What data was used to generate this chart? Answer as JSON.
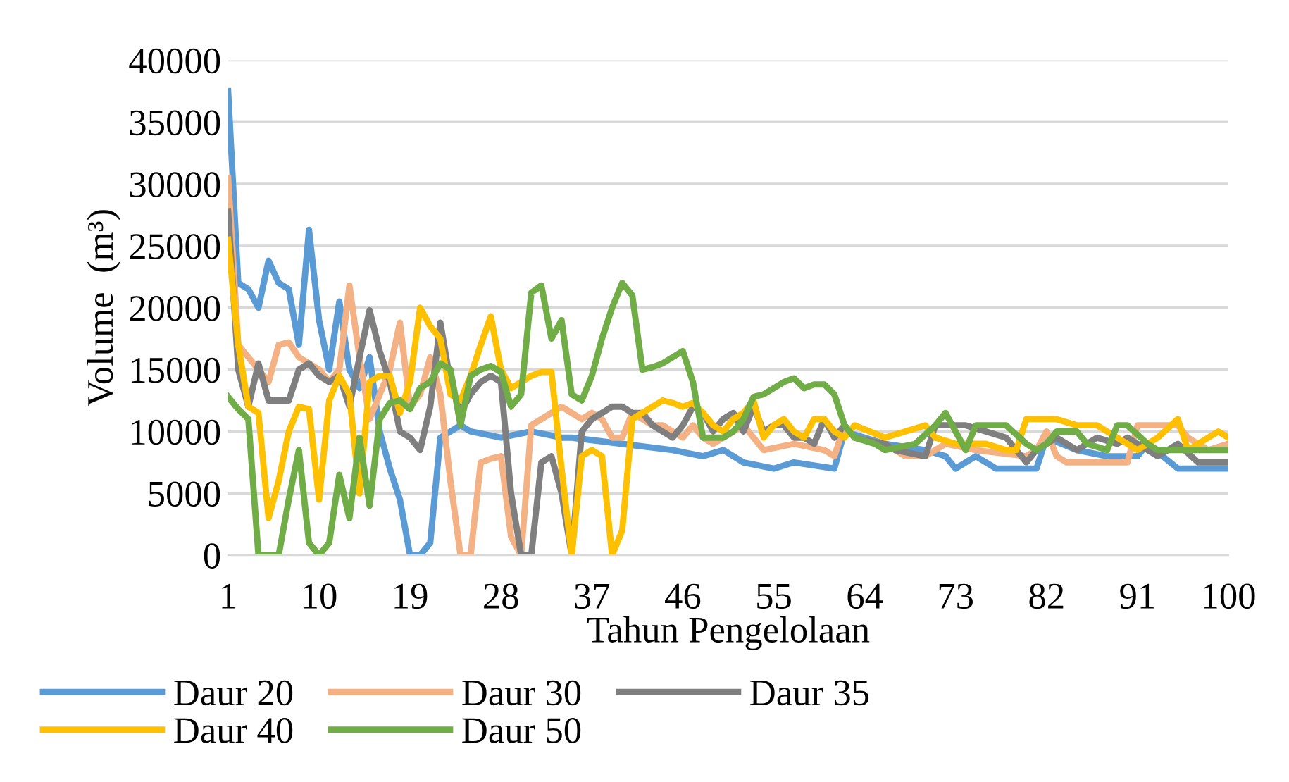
{
  "chart_data": {
    "type": "line",
    "xlabel": "Tahun Pengelolaan",
    "ylabel": "Volume  (m³)",
    "xlim": [
      1,
      100
    ],
    "xticks": [
      1,
      10,
      19,
      28,
      37,
      46,
      55,
      64,
      73,
      82,
      91,
      100
    ],
    "ylim": [
      0,
      40000
    ],
    "yticks": [
      0,
      5000,
      10000,
      15000,
      20000,
      25000,
      30000,
      35000,
      40000
    ],
    "grid": "y",
    "legend": "bottom",
    "marker": "none",
    "line_style": "solid",
    "series": [
      {
        "name": "Daur 20",
        "color": "#5b9bd5",
        "x": [
          1,
          2,
          3,
          4,
          5,
          6,
          7,
          8,
          9,
          10,
          11,
          12,
          13,
          14,
          15,
          16,
          17,
          18,
          19,
          20,
          21,
          22,
          23,
          24,
          25,
          28,
          31,
          34,
          35,
          40,
          45,
          48,
          50,
          52,
          55,
          57,
          61,
          62,
          66,
          70,
          72,
          73,
          75,
          77,
          81,
          82,
          85,
          88,
          91,
          92,
          95,
          97,
          100
        ],
        "values": [
          37500,
          22000,
          21500,
          20000,
          23800,
          22000,
          21500,
          17000,
          26300,
          19000,
          15000,
          20500,
          15000,
          13500,
          16000,
          10000,
          7000,
          4500,
          0,
          0,
          1000,
          9500,
          10000,
          10500,
          10000,
          9500,
          10000,
          9500,
          9500,
          9000,
          8500,
          8000,
          8500,
          7500,
          7000,
          7500,
          7000,
          10000,
          9000,
          8500,
          8000,
          7000,
          8000,
          7000,
          7000,
          9500,
          8500,
          8000,
          8000,
          9000,
          7000,
          7000,
          7000
        ]
      },
      {
        "name": "Daur 30",
        "color": "#f4b183",
        "x": [
          1,
          2,
          3,
          4,
          5,
          6,
          7,
          8,
          9,
          10,
          11,
          12,
          13,
          14,
          15,
          16,
          17,
          18,
          19,
          20,
          21,
          22,
          23,
          24,
          25,
          26,
          27,
          28,
          29,
          30,
          31,
          32,
          33,
          34,
          35,
          36,
          37,
          38,
          39,
          40,
          41,
          42,
          43,
          44,
          45,
          46,
          47,
          48,
          49,
          50,
          51,
          52,
          53,
          54,
          57,
          60,
          61,
          62,
          63,
          66,
          68,
          70,
          72,
          75,
          80,
          81,
          82,
          83,
          84,
          90,
          91,
          95,
          96,
          98,
          100
        ],
        "values": [
          30500,
          17000,
          16000,
          15000,
          14000,
          17000,
          17200,
          16000,
          15500,
          15000,
          14000,
          15000,
          21800,
          16000,
          11000,
          13000,
          15000,
          18800,
          12000,
          13000,
          16000,
          13000,
          6000,
          0,
          0,
          7500,
          7800,
          8000,
          1500,
          0,
          10500,
          11000,
          11500,
          12000,
          11500,
          11000,
          11500,
          11000,
          9500,
          9500,
          11500,
          11000,
          10500,
          10500,
          10000,
          9500,
          10500,
          9500,
          9000,
          9500,
          10000,
          10500,
          9500,
          8500,
          9000,
          8500,
          8000,
          10500,
          9500,
          9000,
          8000,
          8000,
          9000,
          8500,
          8000,
          8500,
          10000,
          8000,
          7500,
          7500,
          10500,
          10500,
          9500,
          8500,
          9000
        ]
      },
      {
        "name": "Daur 35",
        "color": "#7f7f7f",
        "x": [
          1,
          2,
          3,
          4,
          5,
          6,
          7,
          8,
          9,
          10,
          11,
          12,
          13,
          14,
          15,
          16,
          17,
          18,
          19,
          20,
          21,
          22,
          23,
          24,
          25,
          26,
          27,
          28,
          29,
          30,
          31,
          32,
          33,
          34,
          35,
          36,
          37,
          38,
          39,
          40,
          41,
          42,
          43,
          44,
          45,
          46,
          47,
          48,
          49,
          50,
          51,
          52,
          53,
          54,
          55,
          56,
          57,
          58,
          59,
          60,
          61,
          62,
          63,
          66,
          67,
          70,
          71,
          74,
          76,
          78,
          80,
          81,
          83,
          85,
          87,
          89,
          90,
          92,
          93,
          95,
          97,
          100
        ],
        "values": [
          27800,
          15000,
          12000,
          15500,
          12500,
          12500,
          12500,
          15000,
          15500,
          14500,
          14000,
          14500,
          12000,
          16000,
          19800,
          16500,
          14000,
          10000,
          9500,
          8500,
          12000,
          18800,
          14000,
          11500,
          13000,
          14000,
          14500,
          14000,
          5000,
          0,
          0,
          7500,
          8000,
          5000,
          0,
          10000,
          11000,
          11500,
          12000,
          12000,
          11500,
          11500,
          10500,
          10000,
          9500,
          10500,
          12000,
          11500,
          10000,
          11000,
          11500,
          10000,
          12000,
          10000,
          10500,
          10500,
          9500,
          9500,
          9000,
          11000,
          9500,
          10500,
          9500,
          9000,
          8500,
          8000,
          10500,
          10500,
          10000,
          9500,
          7500,
          8500,
          9500,
          8500,
          9500,
          9000,
          9500,
          8500,
          8000,
          9000,
          7500,
          7500
        ]
      },
      {
        "name": "Daur 40",
        "color": "#ffc000",
        "x": [
          1,
          2,
          3,
          4,
          5,
          6,
          7,
          8,
          9,
          10,
          11,
          12,
          13,
          14,
          15,
          16,
          17,
          18,
          19,
          20,
          21,
          22,
          23,
          24,
          25,
          26,
          27,
          28,
          29,
          30,
          31,
          32,
          33,
          34,
          35,
          36,
          37,
          38,
          39,
          40,
          41,
          42,
          43,
          44,
          45,
          46,
          47,
          48,
          49,
          50,
          51,
          52,
          53,
          54,
          55,
          56,
          57,
          58,
          59,
          60,
          61,
          62,
          63,
          66,
          68,
          70,
          71,
          73,
          76,
          78,
          79,
          80,
          83,
          85,
          87,
          88,
          90,
          91,
          93,
          95,
          96,
          97,
          99,
          100
        ],
        "values": [
          25500,
          17000,
          12000,
          11500,
          3000,
          6000,
          10000,
          12000,
          11800,
          4500,
          12500,
          14500,
          13000,
          5000,
          14000,
          14500,
          14500,
          11500,
          14000,
          20000,
          18500,
          17500,
          13000,
          12500,
          14500,
          17000,
          19300,
          15000,
          13500,
          14000,
          14500,
          14800,
          14800,
          7000,
          0,
          8000,
          8500,
          8000,
          0,
          2000,
          11000,
          11500,
          12000,
          12500,
          12300,
          12000,
          12300,
          11500,
          10500,
          10000,
          11000,
          11500,
          12500,
          9500,
          10500,
          11000,
          10000,
          9500,
          11000,
          11000,
          10000,
          9500,
          10500,
          9500,
          10000,
          10500,
          9500,
          9000,
          9000,
          8500,
          8500,
          11000,
          11000,
          10500,
          10500,
          10000,
          9000,
          8500,
          9500,
          11000,
          8500,
          9000,
          10000,
          9500
        ]
      },
      {
        "name": "Daur 50",
        "color": "#70ad47",
        "x": [
          1,
          2,
          3,
          4,
          5,
          6,
          7,
          8,
          9,
          10,
          11,
          12,
          13,
          14,
          15,
          16,
          17,
          18,
          19,
          20,
          21,
          22,
          23,
          24,
          25,
          26,
          27,
          28,
          29,
          30,
          31,
          32,
          33,
          34,
          35,
          36,
          37,
          38,
          39,
          40,
          41,
          42,
          43,
          44,
          45,
          46,
          47,
          48,
          49,
          50,
          51,
          52,
          53,
          54,
          55,
          56,
          57,
          58,
          59,
          60,
          61,
          62,
          63,
          65,
          66,
          69,
          71,
          72,
          74,
          75,
          78,
          80,
          81,
          82,
          83,
          85,
          86,
          88,
          89,
          90,
          92,
          93,
          100
        ],
        "values": [
          12800,
          11800,
          11000,
          0,
          0,
          0,
          4500,
          8500,
          1000,
          0,
          1000,
          6500,
          3000,
          9500,
          4000,
          11000,
          12300,
          12500,
          11800,
          13500,
          14000,
          15500,
          15000,
          10500,
          14500,
          15000,
          15300,
          14800,
          12000,
          13000,
          21200,
          21800,
          17500,
          19000,
          13000,
          12500,
          14500,
          17500,
          20000,
          22000,
          21000,
          15000,
          15200,
          15500,
          16000,
          16500,
          14000,
          9500,
          9500,
          9500,
          10000,
          11000,
          12800,
          13000,
          13500,
          14000,
          14300,
          13500,
          13800,
          13800,
          13000,
          10500,
          9500,
          9000,
          8500,
          9000,
          10500,
          11500,
          8500,
          10500,
          10500,
          9000,
          8500,
          9000,
          10000,
          10000,
          9000,
          8500,
          10500,
          10500,
          9000,
          8500,
          8500
        ]
      }
    ]
  }
}
